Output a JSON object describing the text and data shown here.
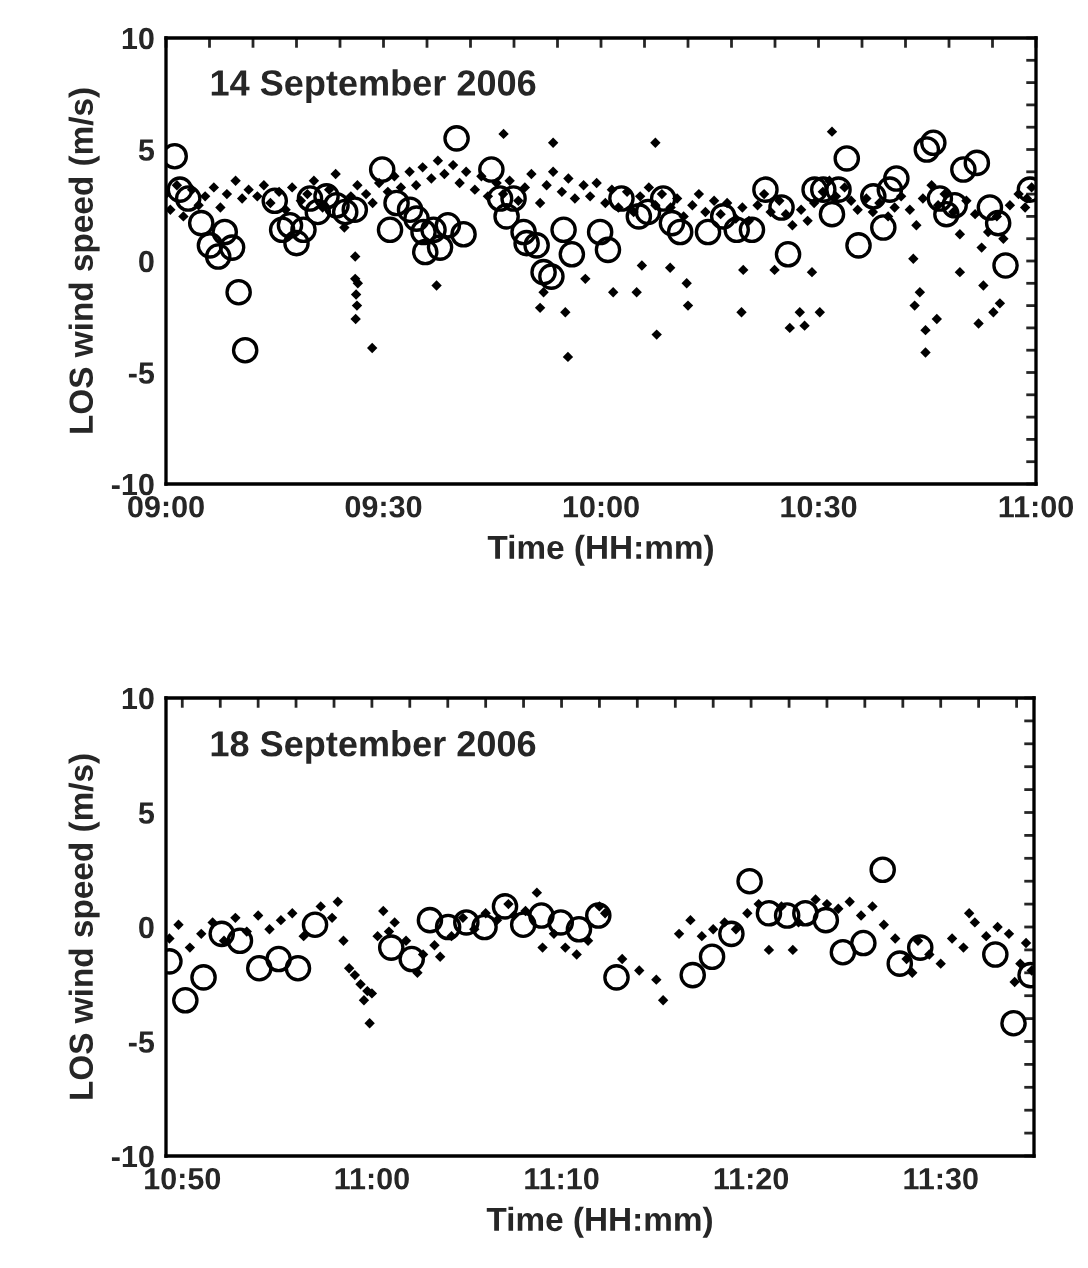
{
  "chart_data": [
    {
      "type": "scatter",
      "annotations": [
        "14 September 2006"
      ],
      "xlabel": "Time (HH:mm)",
      "ylabel": "LOS wind speed (m/s)",
      "grid": false,
      "legend": false,
      "xlim": [
        9.0,
        11.0
      ],
      "ylim": [
        -10,
        10
      ],
      "xticks": [
        {
          "value": 9.0,
          "label": "09:00"
        },
        {
          "value": 9.1,
          "label": null
        },
        {
          "value": 9.2,
          "label": null
        },
        {
          "value": 9.3,
          "label": null
        },
        {
          "value": 9.4,
          "label": null
        },
        {
          "value": 9.5,
          "label": "09:30"
        },
        {
          "value": 9.6,
          "label": null
        },
        {
          "value": 9.7,
          "label": null
        },
        {
          "value": 9.8,
          "label": null
        },
        {
          "value": 9.9,
          "label": null
        },
        {
          "value": 10.0,
          "label": "10:00"
        },
        {
          "value": 10.1,
          "label": null
        },
        {
          "value": 10.2,
          "label": null
        },
        {
          "value": 10.3,
          "label": null
        },
        {
          "value": 10.4,
          "label": null
        },
        {
          "value": 10.5,
          "label": "10:30"
        },
        {
          "value": 10.6,
          "label": null
        },
        {
          "value": 10.7,
          "label": null
        },
        {
          "value": 10.8,
          "label": null
        },
        {
          "value": 10.9,
          "label": null
        },
        {
          "value": 11.0,
          "label": "11:00"
        }
      ],
      "yticks": [
        -10,
        {
          "value": -9,
          "label": null
        },
        {
          "value": -8,
          "label": null
        },
        {
          "value": -7,
          "label": null
        },
        {
          "value": -6,
          "label": null
        },
        -5,
        {
          "value": -4,
          "label": null
        },
        {
          "value": -3,
          "label": null
        },
        {
          "value": -2,
          "label": null
        },
        {
          "value": -1,
          "label": null
        },
        0,
        {
          "value": 1,
          "label": null
        },
        {
          "value": 2,
          "label": null
        },
        {
          "value": 3,
          "label": null
        },
        {
          "value": 4,
          "label": null
        },
        5,
        {
          "value": 6,
          "label": null
        },
        {
          "value": 7,
          "label": null
        },
        {
          "value": 8,
          "label": null
        },
        {
          "value": 9,
          "label": null
        },
        10
      ],
      "series": [
        {
          "color": "#000000",
          "marker": "diamond",
          "x": [
            9.0,
            9.01,
            9.025,
            9.04,
            9.06,
            9.075,
            9.09,
            9.11,
            9.125,
            9.14,
            9.16,
            9.175,
            9.19,
            9.21,
            9.225,
            9.24,
            9.26,
            9.275,
            9.29,
            9.31,
            9.325,
            9.34,
            9.36,
            9.375,
            9.39,
            9.41,
            9.425,
            9.44,
            9.46,
            9.475,
            9.49,
            9.51,
            9.525,
            9.54,
            9.56,
            9.575,
            9.59,
            9.61,
            9.625,
            9.64,
            9.66,
            9.675,
            9.69,
            9.71,
            9.725,
            9.74,
            9.76,
            9.775,
            9.79,
            9.81,
            9.825,
            9.84,
            9.86,
            9.875,
            9.89,
            9.91,
            9.925,
            9.94,
            9.96,
            9.975,
            9.99,
            10.01,
            10.025,
            10.04,
            10.06,
            10.075,
            10.09,
            10.11,
            10.125,
            10.14,
            10.16,
            10.175,
            10.19,
            10.21,
            10.225,
            10.24,
            10.26,
            10.275,
            10.29,
            10.31,
            10.325,
            10.34,
            10.36,
            10.375,
            10.39,
            10.41,
            10.425,
            10.44,
            10.46,
            10.475,
            10.49,
            10.51,
            10.525,
            10.54,
            10.56,
            10.575,
            10.59,
            10.61,
            10.625,
            10.64,
            10.66,
            10.675,
            10.69,
            10.71,
            10.725,
            10.74,
            10.76,
            10.775,
            10.79,
            10.81,
            10.825,
            10.84,
            10.86,
            10.875,
            10.89,
            10.91,
            10.925,
            10.94,
            10.96,
            10.975,
            10.99,
            9.435,
            9.435,
            9.441,
            9.437,
            9.439,
            9.436,
            9.474,
            9.622,
            9.776,
            9.89,
            9.86,
            9.868,
            9.918,
            9.924,
            9.964,
            10.125,
            10.094,
            10.082,
            10.128,
            10.159,
            10.197,
            10.2,
            10.323,
            10.327,
            10.399,
            10.434,
            10.457,
            10.468,
            10.485,
            10.503,
            10.531,
            10.718,
            10.721,
            10.746,
            10.746,
            10.772,
            10.733,
            10.825,
            10.879,
            10.902,
            10.917,
            10.868,
            10.028,
            10.979
          ],
          "values": [
            3.0,
            2.3,
            3.4,
            2.0,
            3.2,
            2.5,
            2.9,
            3.3,
            2.4,
            3.0,
            3.6,
            2.8,
            3.2,
            2.9,
            3.4,
            2.6,
            3.1,
            2.3,
            3.3,
            2.7,
            3.0,
            3.6,
            2.4,
            3.2,
            3.9,
            1.5,
            2.9,
            3.4,
            3.0,
            2.6,
            3.5,
            3.1,
            3.8,
            3.3,
            4.0,
            3.4,
            4.2,
            3.7,
            4.5,
            3.9,
            4.3,
            3.5,
            4.0,
            3.2,
            3.8,
            2.9,
            3.5,
            3.0,
            3.6,
            2.7,
            3.3,
            3.9,
            2.6,
            3.4,
            4.0,
            3.1,
            3.7,
            2.8,
            3.4,
            2.9,
            3.5,
            2.6,
            3.2,
            2.4,
            3.1,
            2.2,
            2.9,
            3.3,
            2.5,
            3.0,
            2.4,
            2.8,
            2.0,
            2.5,
            3.0,
            2.2,
            2.7,
            2.1,
            2.6,
            1.9,
            2.4,
            1.8,
            2.5,
            3.0,
            2.2,
            2.7,
            2.1,
            1.6,
            2.3,
            1.8,
            2.6,
            3.1,
            3.6,
            2.9,
            3.3,
            2.7,
            2.3,
            2.8,
            2.2,
            2.6,
            2.0,
            2.4,
            2.9,
            2.3,
            1.6,
            2.8,
            3.4,
            2.5,
            3.0,
            2.2,
            1.2,
            2.7,
            2.1,
            0.6,
            1.3,
            2.0,
            1.0,
            2.5,
            3.0,
            2.4,
            3.3,
            0.2,
            -0.8,
            -1.0,
            -1.5,
            -2.0,
            -2.6,
            -3.9,
            -1.1,
            5.7,
            5.3,
            -2.1,
            -1.4,
            -2.3,
            -4.3,
            -0.8,
            5.3,
            -0.2,
            -1.4,
            -3.3,
            -0.3,
            -1.0,
            -2.0,
            -2.3,
            -0.4,
            -0.4,
            -3.0,
            -2.3,
            -2.9,
            -0.5,
            -2.3,
            5.8,
            0.1,
            -2.0,
            -3.1,
            -4.1,
            -2.6,
            -1.4,
            -0.5,
            -1.1,
            -2.3,
            -1.9,
            -2.8,
            -1.4,
            2.8
          ]
        },
        {
          "color": "#000000",
          "marker": "circle",
          "x": [
            9.02,
            9.032,
            9.051,
            9.081,
            9.101,
            9.12,
            9.135,
            9.152,
            9.167,
            9.182,
            9.25,
            9.267,
            9.285,
            9.3,
            9.316,
            9.331,
            9.349,
            9.369,
            9.392,
            9.412,
            9.434,
            9.497,
            9.515,
            9.53,
            9.561,
            9.576,
            9.592,
            9.596,
            9.615,
            9.63,
            9.648,
            9.668,
            9.684,
            9.748,
            9.768,
            9.783,
            9.799,
            9.822,
            9.829,
            9.852,
            9.868,
            9.886,
            9.914,
            9.933,
            9.998,
            10.016,
            10.047,
            10.087,
            10.108,
            10.143,
            10.163,
            10.182,
            10.246,
            10.281,
            10.312,
            10.347,
            10.378,
            10.415,
            10.43,
            10.491,
            10.511,
            10.531,
            10.546,
            10.565,
            10.592,
            10.626,
            10.649,
            10.664,
            10.679,
            10.749,
            10.764,
            10.779,
            10.794,
            10.813,
            10.833,
            10.864,
            10.894,
            10.913,
            10.93,
            10.986
          ],
          "values": [
            4.7,
            3.2,
            2.8,
            1.7,
            0.7,
            0.2,
            1.3,
            0.6,
            -1.4,
            -4.0,
            2.7,
            1.4,
            1.6,
            0.8,
            1.4,
            2.8,
            2.2,
            2.9,
            2.5,
            2.2,
            2.3,
            4.1,
            1.4,
            2.6,
            2.3,
            1.9,
            1.3,
            0.4,
            1.4,
            0.6,
            1.6,
            5.5,
            1.2,
            4.1,
            2.8,
            2.0,
            2.8,
            1.3,
            0.8,
            0.7,
            -0.5,
            -0.7,
            1.4,
            0.3,
            1.3,
            0.5,
            2.8,
            2.0,
            2.2,
            2.8,
            1.7,
            1.3,
            1.3,
            2.0,
            1.4,
            1.4,
            3.2,
            2.4,
            0.3,
            3.2,
            3.2,
            2.1,
            3.2,
            4.6,
            0.7,
            2.9,
            1.5,
            3.2,
            3.7,
            5.0,
            5.3,
            2.8,
            2.1,
            2.5,
            4.1,
            4.4,
            2.4,
            1.7,
            -0.2,
            3.2
          ]
        }
      ]
    },
    {
      "type": "scatter",
      "annotations": [
        "18 September 2006"
      ],
      "xlabel": "Time (HH:mm)",
      "ylabel": "LOS wind speed (m/s)",
      "grid": false,
      "legend": false,
      "xlim": [
        10.819,
        11.582
      ],
      "ylim": [
        -10,
        10
      ],
      "xticks": [
        {
          "value": 10.8333,
          "label": "10:50"
        },
        {
          "value": 10.8667,
          "label": null
        },
        {
          "value": 10.9,
          "label": null
        },
        {
          "value": 10.9333,
          "label": null
        },
        {
          "value": 10.9667,
          "label": null
        },
        {
          "value": 11.0,
          "label": "11:00"
        },
        {
          "value": 11.0333,
          "label": null
        },
        {
          "value": 11.0667,
          "label": null
        },
        {
          "value": 11.1,
          "label": null
        },
        {
          "value": 11.1333,
          "label": null
        },
        {
          "value": 11.1667,
          "label": "11:10"
        },
        {
          "value": 11.2,
          "label": null
        },
        {
          "value": 11.2333,
          "label": null
        },
        {
          "value": 11.2667,
          "label": null
        },
        {
          "value": 11.3,
          "label": null
        },
        {
          "value": 11.3333,
          "label": "11:20"
        },
        {
          "value": 11.3667,
          "label": null
        },
        {
          "value": 11.4,
          "label": null
        },
        {
          "value": 11.4333,
          "label": null
        },
        {
          "value": 11.4667,
          "label": null
        },
        {
          "value": 11.5,
          "label": "11:30"
        },
        {
          "value": 11.5333,
          "label": null
        },
        {
          "value": 11.5667,
          "label": null
        }
      ],
      "yticks": [
        -10,
        {
          "value": -9,
          "label": null
        },
        {
          "value": -8,
          "label": null
        },
        {
          "value": -7,
          "label": null
        },
        {
          "value": -6,
          "label": null
        },
        -5,
        {
          "value": -4,
          "label": null
        },
        {
          "value": -3,
          "label": null
        },
        {
          "value": -2,
          "label": null
        },
        {
          "value": -1,
          "label": null
        },
        0,
        {
          "value": 1,
          "label": null
        },
        {
          "value": 2,
          "label": null
        },
        {
          "value": 3,
          "label": null
        },
        {
          "value": 4,
          "label": null
        },
        5,
        {
          "value": 6,
          "label": null
        },
        {
          "value": 7,
          "label": null
        },
        {
          "value": 8,
          "label": null
        },
        {
          "value": 9,
          "label": null
        },
        10
      ],
      "series": [
        {
          "color": "#000000",
          "marker": "diamond",
          "x": [
            10.822,
            10.83,
            10.84,
            10.85,
            10.86,
            10.87,
            10.88,
            10.89,
            10.9,
            10.91,
            10.92,
            10.93,
            10.94,
            10.955,
            10.965,
            10.97,
            10.975,
            10.98,
            10.985,
            10.99,
            10.993,
            10.996,
            10.998,
            11.0,
            11.005,
            11.01,
            11.015,
            11.02,
            11.03,
            11.04,
            11.045,
            11.055,
            11.06,
            11.07,
            11.08,
            11.09,
            11.1,
            11.11,
            11.12,
            11.125,
            11.135,
            11.145,
            11.15,
            11.16,
            11.17,
            11.18,
            11.19,
            11.2,
            11.205,
            11.22,
            11.235,
            11.25,
            11.256,
            11.27,
            11.28,
            11.29,
            11.3,
            11.31,
            11.32,
            11.33,
            11.34,
            11.349,
            11.36,
            11.37,
            11.375,
            11.39,
            11.4,
            11.41,
            11.42,
            11.43,
            11.44,
            11.45,
            11.46,
            11.47,
            11.475,
            11.48,
            11.49,
            11.5,
            11.51,
            11.52,
            11.525,
            11.53,
            11.54,
            11.55,
            11.56,
            11.565,
            11.57,
            11.575,
            11.58
          ],
          "values": [
            -0.5,
            0.1,
            -0.9,
            -0.3,
            0.2,
            -0.6,
            0.4,
            -0.2,
            0.5,
            -0.1,
            0.3,
            0.6,
            -0.4,
            0.9,
            0.4,
            1.1,
            -0.6,
            -1.8,
            -2.1,
            -2.5,
            -3.2,
            -2.8,
            -4.2,
            -2.9,
            -0.4,
            0.7,
            -0.2,
            0.2,
            -0.6,
            -2.0,
            -1.2,
            -0.8,
            -1.3,
            -0.4,
            0.4,
            -0.1,
            0.6,
            0.3,
            1.0,
            0.5,
            0.7,
            1.5,
            -0.9,
            -0.3,
            -0.9,
            -1.2,
            -0.6,
            0.9,
            0.6,
            -1.4,
            -1.9,
            -2.3,
            -3.2,
            -0.3,
            0.3,
            -0.4,
            -0.1,
            0.2,
            -0.1,
            0.6,
            1.0,
            -1.0,
            0.9,
            -1.0,
            0.2,
            1.2,
            1.0,
            0.8,
            1.1,
            0.5,
            0.9,
            0.1,
            -0.5,
            -1.4,
            -2.0,
            -0.6,
            -1.2,
            -1.6,
            -0.5,
            -0.9,
            0.6,
            0.2,
            -0.4,
            0.0,
            -0.3,
            -2.4,
            -1.6,
            -0.7,
            -1.9
          ]
        },
        {
          "color": "#000000",
          "marker": "circle",
          "x": [
            10.822,
            10.836,
            10.852,
            10.868,
            10.884,
            10.901,
            10.918,
            10.935,
            10.95,
            11.017,
            11.035,
            11.051,
            11.067,
            11.083,
            11.099,
            11.117,
            11.133,
            11.149,
            11.166,
            11.182,
            11.199,
            11.215,
            11.282,
            11.299,
            11.316,
            11.332,
            11.349,
            11.365,
            11.381,
            11.399,
            11.414,
            11.432,
            11.449,
            11.464,
            11.482,
            11.548,
            11.564,
            11.579
          ],
          "values": [
            -1.5,
            -3.2,
            -2.2,
            -0.3,
            -0.6,
            -1.8,
            -1.4,
            -1.8,
            0.1,
            -0.9,
            -1.4,
            0.3,
            0.0,
            0.2,
            0.0,
            0.9,
            0.1,
            0.5,
            0.2,
            -0.1,
            0.5,
            -2.2,
            -2.1,
            -1.3,
            -0.3,
            2.0,
            0.6,
            0.5,
            0.6,
            0.3,
            -1.1,
            -0.7,
            2.5,
            -1.6,
            -0.9,
            -1.2,
            -4.2,
            -2.1
          ]
        }
      ]
    }
  ]
}
